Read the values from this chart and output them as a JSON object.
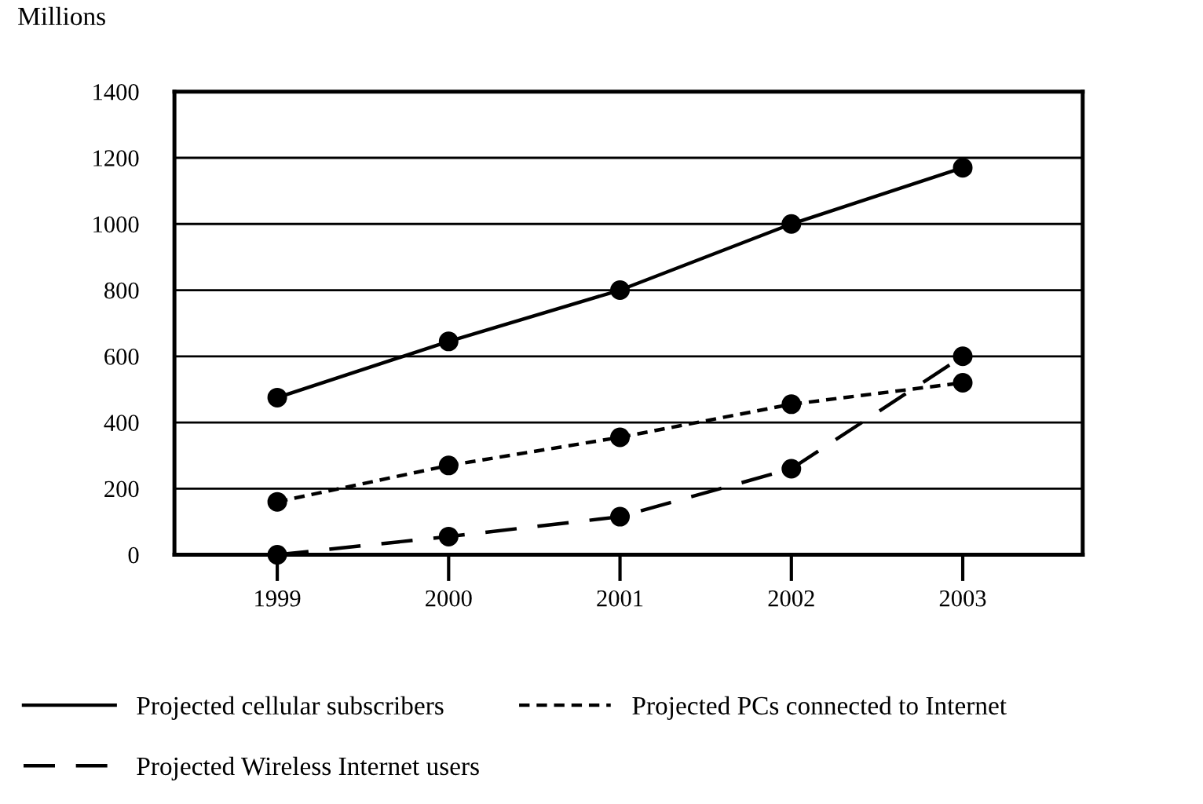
{
  "chart_data": {
    "type": "line",
    "ylabel": "Millions",
    "categories": [
      "1999",
      "2000",
      "2001",
      "2002",
      "2003"
    ],
    "series": [
      {
        "name": "Projected cellular subscribers",
        "color": "#000000",
        "line_style": "solid",
        "values": [
          475,
          645,
          800,
          1000,
          1170
        ]
      },
      {
        "name": "Projected PCs connected to Internet",
        "color": "#000000",
        "line_style": "dotted",
        "values": [
          160,
          270,
          355,
          455,
          520
        ]
      },
      {
        "name": "Projected Wireless Internet users",
        "color": "#000000",
        "line_style": "dashed",
        "values": [
          0,
          55,
          115,
          260,
          600
        ]
      }
    ],
    "ylim": [
      0,
      1400
    ],
    "yticks": [
      0,
      200,
      400,
      600,
      800,
      1000,
      1200,
      1400
    ],
    "grid": "y",
    "marker": "circle",
    "legend": "bottom"
  }
}
